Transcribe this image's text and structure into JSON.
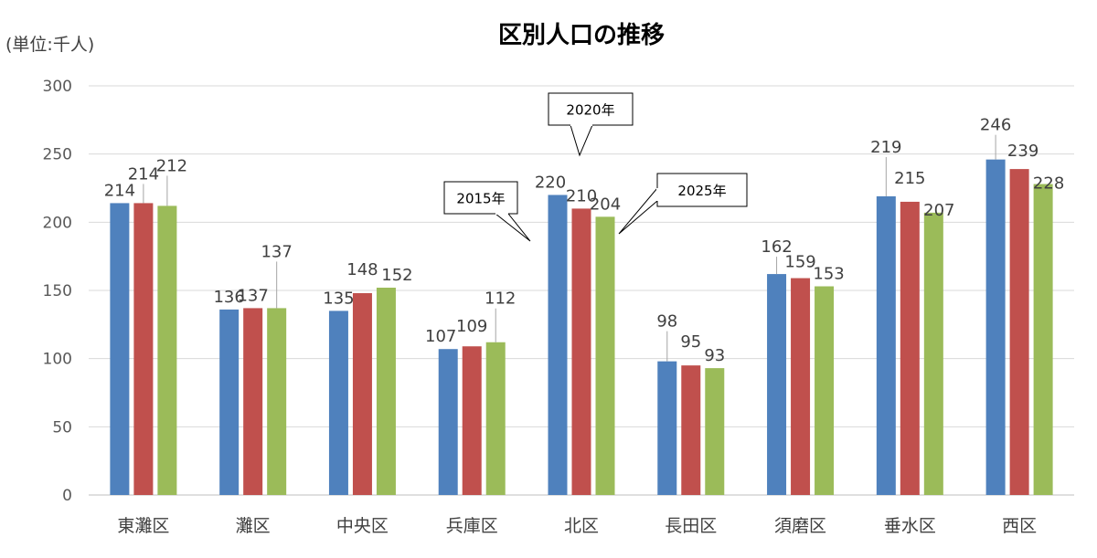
{
  "chart_data": {
    "type": "bar",
    "title": "区別人口の推移",
    "unit_label": "(単位:千人)",
    "categories": [
      "東灘区",
      "灘区",
      "中央区",
      "兵庫区",
      "北区",
      "長田区",
      "須磨区",
      "垂水区",
      "西区"
    ],
    "series": [
      {
        "name": "2015年",
        "color": "#4f81bd",
        "values": [
          214,
          136,
          135,
          107,
          220,
          98,
          162,
          219,
          246
        ]
      },
      {
        "name": "2020年",
        "color": "#c0504d",
        "values": [
          214,
          137,
          148,
          109,
          210,
          95,
          159,
          215,
          239
        ]
      },
      {
        "name": "2025年",
        "color": "#9bbb59",
        "values": [
          212,
          137,
          152,
          112,
          204,
          93,
          153,
          207,
          228
        ]
      }
    ],
    "yticks": [
      0,
      50,
      100,
      150,
      200,
      250,
      300
    ],
    "ylim": [
      0,
      300
    ],
    "grid": true,
    "legend": "callouts pointing at 北区 bars"
  }
}
